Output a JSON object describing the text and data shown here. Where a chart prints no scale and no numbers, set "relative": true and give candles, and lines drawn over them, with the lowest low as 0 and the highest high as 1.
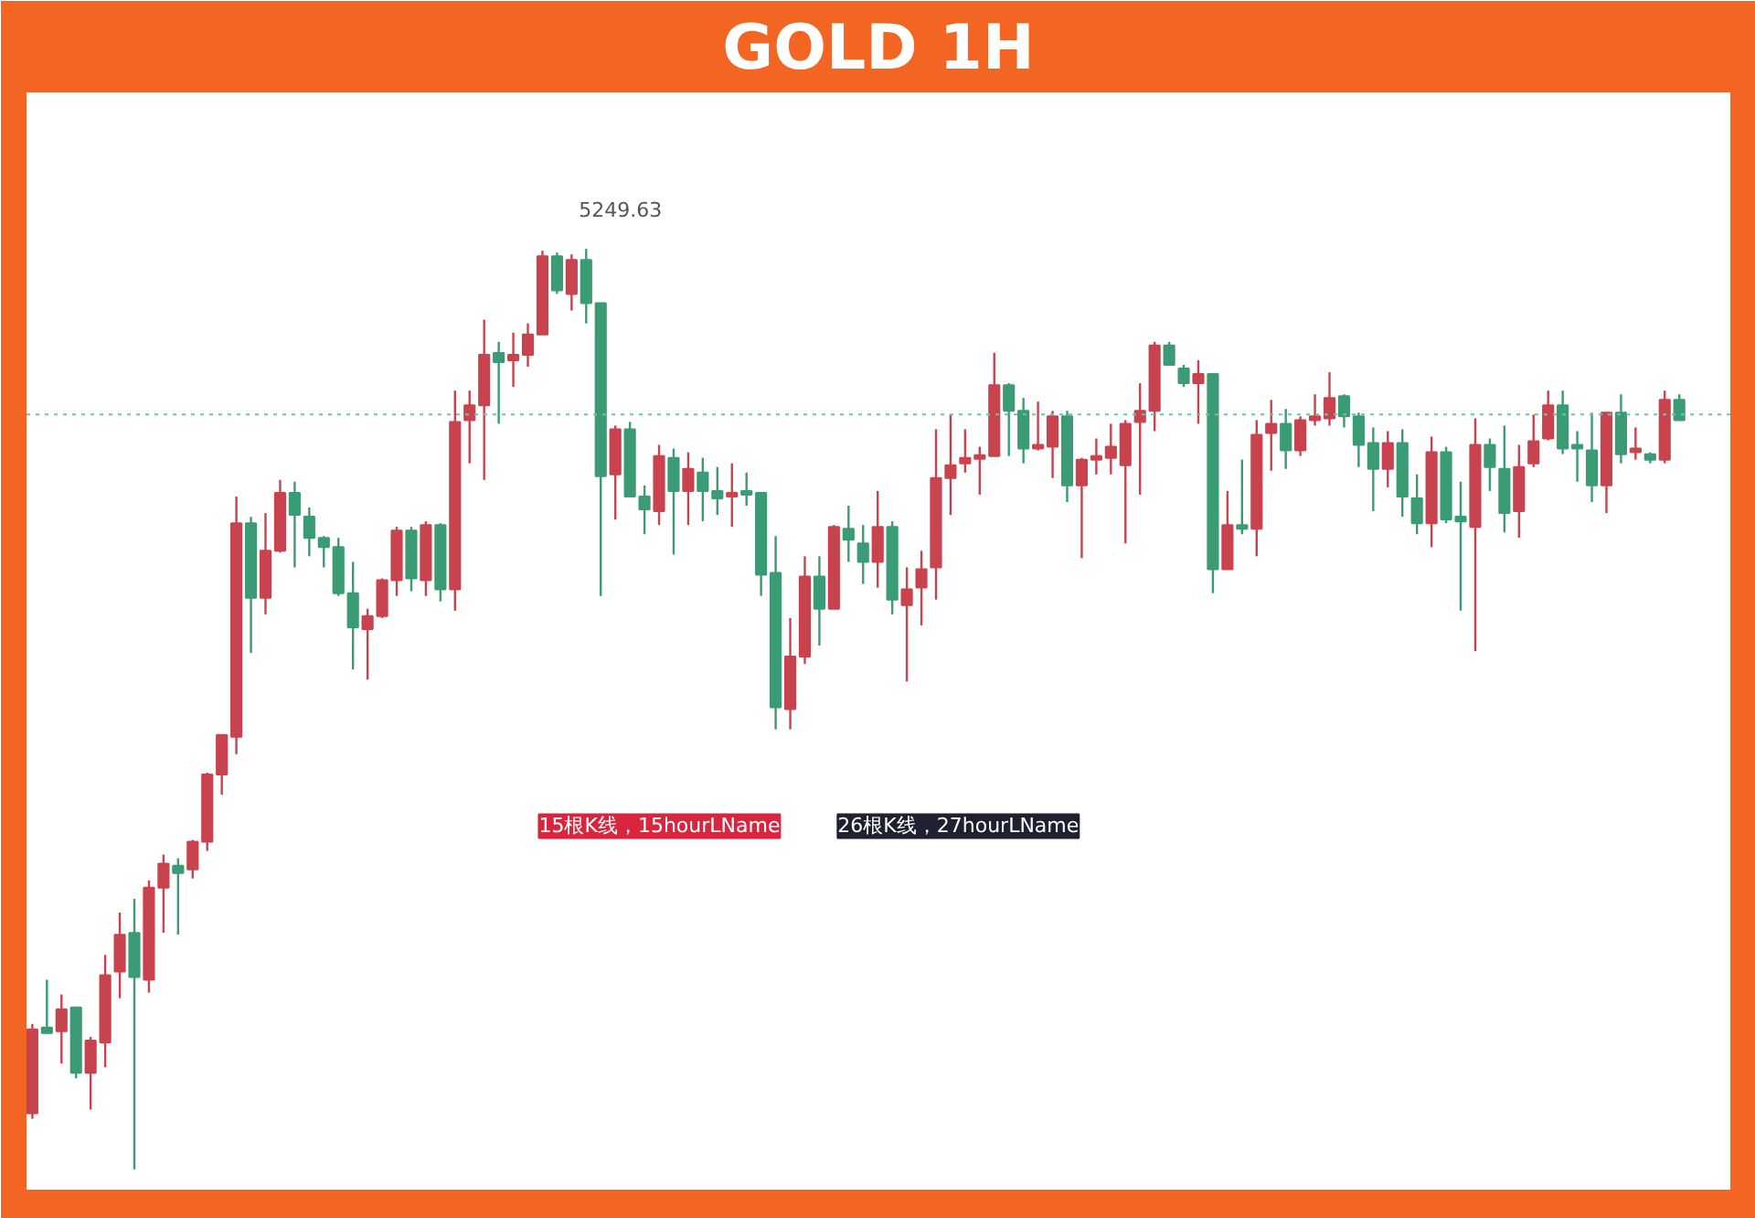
{
  "chart_data": {
    "type": "candlestick",
    "title": "GOLD 1H",
    "relative": true,
    "grid": false,
    "categories": [
      null,
      null,
      null,
      null,
      null,
      null,
      null,
      null,
      null,
      null,
      null,
      null,
      null,
      null,
      null,
      null,
      null,
      null,
      null,
      null,
      null,
      null,
      null,
      null,
      null,
      null,
      null,
      null,
      null,
      null,
      null,
      null,
      null,
      null,
      null,
      null,
      null,
      null,
      null,
      null,
      null,
      null,
      null,
      null,
      null,
      null,
      null,
      null,
      null,
      null,
      null,
      null,
      null,
      null,
      null,
      null,
      null,
      null,
      null,
      null,
      null,
      null,
      null,
      null,
      null,
      null,
      null,
      null,
      null,
      null,
      null,
      null,
      null,
      null,
      null,
      null,
      null,
      null,
      null,
      null,
      null,
      null,
      null,
      null,
      null,
      null,
      null,
      null,
      null,
      null,
      null,
      null,
      null,
      null,
      null,
      null,
      null,
      null,
      null,
      null,
      null,
      null,
      null,
      null,
      null,
      null,
      null,
      null,
      null,
      null,
      null,
      null,
      null,
      null
    ],
    "ohlc": [
      [
        0.061,
        0.158,
        0.055,
        0.152
      ],
      [
        0.154,
        0.206,
        0.148,
        0.148
      ],
      [
        0.15,
        0.19,
        0.115,
        0.174
      ],
      [
        0.176,
        0.176,
        0.099,
        0.105
      ],
      [
        0.105,
        0.144,
        0.065,
        0.14
      ],
      [
        0.138,
        0.233,
        0.111,
        0.211
      ],
      [
        0.215,
        0.279,
        0.186,
        0.255
      ],
      [
        0.257,
        0.294,
        0,
        0.209
      ],
      [
        0.206,
        0.314,
        0.192,
        0.306
      ],
      [
        0.306,
        0.342,
        0.257,
        0.332
      ],
      [
        0.33,
        0.338,
        0.255,
        0.322
      ],
      [
        0.326,
        0.358,
        0.316,
        0.356
      ],
      [
        0.356,
        0.431,
        0.346,
        0.429
      ],
      [
        0.429,
        0.472,
        0.407,
        0.472
      ],
      [
        0.47,
        0.731,
        0.451,
        0.702
      ],
      [
        0.702,
        0.709,
        0.561,
        0.621
      ],
      [
        0.621,
        0.713,
        0.603,
        0.672
      ],
      [
        0.672,
        0.749,
        0.67,
        0.735
      ],
      [
        0.735,
        0.747,
        0.654,
        0.711
      ],
      [
        0.709,
        0.719,
        0.666,
        0.686
      ],
      [
        0.686,
        0.688,
        0.654,
        0.676
      ],
      [
        0.676,
        0.686,
        0.623,
        0.626
      ],
      [
        0.626,
        0.66,
        0.543,
        0.589
      ],
      [
        0.587,
        0.609,
        0.532,
        0.601
      ],
      [
        0.601,
        0.642,
        0.599,
        0.64
      ],
      [
        0.64,
        0.698,
        0.623,
        0.694
      ],
      [
        0.694,
        0.698,
        0.628,
        0.642
      ],
      [
        0.64,
        0.704,
        0.623,
        0.7
      ],
      [
        0.7,
        0.702,
        0.617,
        0.63
      ],
      [
        0.63,
        0.846,
        0.607,
        0.812
      ],
      [
        0.814,
        0.846,
        0.767,
        0.83
      ],
      [
        0.83,
        0.923,
        0.749,
        0.885
      ],
      [
        0.887,
        0.899,
        0.81,
        0.877
      ],
      [
        0.879,
        0.909,
        0.85,
        0.885
      ],
      [
        0.885,
        0.919,
        0.872,
        0.907
      ],
      [
        0.907,
        0.998,
        0.907,
        0.992
      ],
      [
        0.992,
        0.996,
        0.951,
        0.955
      ],
      [
        0.951,
        0.994,
        0.933,
        0.988
      ],
      [
        0.988,
        1,
        0.919,
        0.941
      ],
      [
        0.941,
        0.941,
        0.623,
        0.753
      ],
      [
        0.755,
        0.808,
        0.706,
        0.804
      ],
      [
        0.804,
        0.812,
        0.731,
        0.731
      ],
      [
        0.731,
        0.743,
        0.69,
        0.717
      ],
      [
        0.715,
        0.787,
        0.7,
        0.775
      ],
      [
        0.773,
        0.783,
        0.668,
        0.737
      ],
      [
        0.737,
        0.779,
        0.7,
        0.761
      ],
      [
        0.757,
        0.773,
        0.704,
        0.737
      ],
      [
        0.737,
        0.763,
        0.711,
        0.729
      ],
      [
        0.731,
        0.767,
        0.698,
        0.735
      ],
      [
        0.735,
        0.757,
        0.721,
        0.733
      ],
      [
        0.735,
        0.735,
        0.623,
        0.646
      ],
      [
        0.648,
        0.688,
        0.478,
        0.502
      ],
      [
        0.5,
        0.599,
        0.478,
        0.557
      ],
      [
        0.557,
        0.666,
        0.549,
        0.644
      ],
      [
        0.644,
        0.666,
        0.569,
        0.609
      ],
      [
        0.609,
        0.7,
        0.609,
        0.698
      ],
      [
        0.696,
        0.721,
        0.66,
        0.684
      ],
      [
        0.68,
        0.7,
        0.636,
        0.66
      ],
      [
        0.66,
        0.737,
        0.632,
        0.698
      ],
      [
        0.698,
        0.704,
        0.603,
        0.619
      ],
      [
        0.613,
        0.654,
        0.53,
        0.63
      ],
      [
        0.632,
        0.672,
        0.591,
        0.652
      ],
      [
        0.654,
        0.804,
        0.619,
        0.751
      ],
      [
        0.751,
        0.82,
        0.711,
        0.765
      ],
      [
        0.767,
        0.804,
        0.757,
        0.773
      ],
      [
        0.772,
        0.785,
        0.733,
        0.774
      ],
      [
        0.775,
        0.887,
        0.775,
        0.852
      ],
      [
        0.852,
        0.854,
        0.775,
        0.824
      ],
      [
        0.824,
        0.838,
        0.767,
        0.783
      ],
      [
        0.783,
        0.834,
        0.781,
        0.785
      ],
      [
        0.785,
        0.824,
        0.751,
        0.818
      ],
      [
        0.818,
        0.824,
        0.725,
        0.743
      ],
      [
        0.743,
        0.773,
        0.664,
        0.771
      ],
      [
        0.771,
        0.794,
        0.755,
        0.775
      ],
      [
        0.773,
        0.81,
        0.755,
        0.785
      ],
      [
        0.765,
        0.814,
        0.68,
        0.81
      ],
      [
        0.812,
        0.854,
        0.733,
        0.824
      ],
      [
        0.824,
        0.899,
        0.802,
        0.895
      ],
      [
        0.895,
        0.899,
        0.874,
        0.874
      ],
      [
        0.87,
        0.874,
        0.85,
        0.854
      ],
      [
        0.854,
        0.879,
        0.81,
        0.864
      ],
      [
        0.864,
        0.864,
        0.626,
        0.652
      ],
      [
        0.652,
        0.737,
        0.652,
        0.7
      ],
      [
        0.7,
        0.771,
        0.69,
        0.696
      ],
      [
        0.696,
        0.814,
        0.666,
        0.798
      ],
      [
        0.8,
        0.836,
        0.759,
        0.81
      ],
      [
        0.81,
        0.826,
        0.761,
        0.781
      ],
      [
        0.781,
        0.818,
        0.775,
        0.814
      ],
      [
        0.814,
        0.842,
        0.808,
        0.816
      ],
      [
        0.816,
        0.866,
        0.808,
        0.838
      ],
      [
        0.84,
        0.842,
        0.806,
        0.818
      ],
      [
        0.818,
        0.822,
        0.763,
        0.787
      ],
      [
        0.789,
        0.806,
        0.715,
        0.761
      ],
      [
        0.761,
        0.802,
        0.741,
        0.789
      ],
      [
        0.789,
        0.804,
        0.709,
        0.731
      ],
      [
        0.729,
        0.755,
        0.69,
        0.702
      ],
      [
        0.702,
        0.796,
        0.676,
        0.779
      ],
      [
        0.779,
        0.785,
        0.702,
        0.706
      ],
      [
        0.709,
        0.747,
        0.607,
        0.704
      ],
      [
        0.698,
        0.816,
        0.563,
        0.787
      ],
      [
        0.787,
        0.794,
        0.737,
        0.763
      ],
      [
        0.761,
        0.808,
        0.692,
        0.713
      ],
      [
        0.715,
        0.787,
        0.686,
        0.763
      ],
      [
        0.767,
        0.82,
        0.763,
        0.791
      ],
      [
        0.794,
        0.846,
        0.792,
        0.83
      ],
      [
        0.83,
        0.846,
        0.777,
        0.783
      ],
      [
        0.785,
        0.802,
        0.747,
        0.783
      ],
      [
        0.781,
        0.822,
        0.725,
        0.743
      ],
      [
        0.743,
        0.822,
        0.713,
        0.822
      ],
      [
        0.822,
        0.842,
        0.767,
        0.777
      ],
      [
        0.779,
        0.806,
        0.771,
        0.781
      ],
      [
        0.777,
        0.779,
        0.767,
        0.771
      ],
      [
        0.771,
        0.846,
        0.767,
        0.836
      ],
      [
        0.836,
        0.842,
        0.814,
        0.814
      ]
    ],
    "colors": [
      "#c9434e",
      "#3b9b74",
      "#c9434e",
      "#3b9b74",
      "#c9434e",
      "#c9434e",
      "#c9434e",
      "#3b9b74",
      "#c9434e",
      "#c9434e",
      "#3b9b74",
      "#c9434e",
      "#c9434e",
      "#c9434e",
      "#c9434e",
      "#3b9b74",
      "#c9434e",
      "#c9434e",
      "#3b9b74",
      "#3b9b74",
      "#3b9b74",
      "#3b9b74",
      "#3b9b74",
      "#c9434e",
      "#c9434e",
      "#c9434e",
      "#3b9b74",
      "#c9434e",
      "#3b9b74",
      "#c9434e",
      "#c9434e",
      "#c9434e",
      "#3b9b74",
      "#c9434e",
      "#c9434e",
      "#c9434e",
      "#3b9b74",
      "#c9434e",
      "#3b9b74",
      "#3b9b74",
      "#c9434e",
      "#3b9b74",
      "#3b9b74",
      "#c9434e",
      "#3b9b74",
      "#c9434e",
      "#3b9b74",
      "#3b9b74",
      "#c9434e",
      "#3b9b74",
      "#3b9b74",
      "#3b9b74",
      "#c9434e",
      "#c9434e",
      "#3b9b74",
      "#c9434e",
      "#3b9b74",
      "#3b9b74",
      "#c9434e",
      "#3b9b74",
      "#c9434e",
      "#c9434e",
      "#c9434e",
      "#c9434e",
      "#c9434e",
      "#c9434e",
      "#c9434e",
      "#3b9b74",
      "#3b9b74",
      "#c9434e",
      "#c9434e",
      "#3b9b74",
      "#c9434e",
      "#c9434e",
      "#c9434e",
      "#c9434e",
      "#c9434e",
      "#c9434e",
      "#3b9b74",
      "#3b9b74",
      "#c9434e",
      "#3b9b74",
      "#c9434e",
      "#3b9b74",
      "#c9434e",
      "#c9434e",
      "#3b9b74",
      "#c9434e",
      "#c9434e",
      "#c9434e",
      "#3b9b74",
      "#3b9b74",
      "#3b9b74",
      "#c9434e",
      "#3b9b74",
      "#3b9b74",
      "#c9434e",
      "#3b9b74",
      "#3b9b74",
      "#c9434e",
      "#3b9b74",
      "#3b9b74",
      "#c9434e",
      "#c9434e",
      "#c9434e",
      "#3b9b74",
      "#3b9b74",
      "#3b9b74",
      "#c9434e",
      "#3b9b74",
      "#c9434e",
      "#3b9b74",
      "#c9434e",
      "#3b9b74"
    ],
    "ref_lines": [
      {
        "axis": "y",
        "value": 0.82,
        "color": "#6cc3ad",
        "line_style": "dotted"
      }
    ],
    "annotations": [
      "5249.63",
      "15根K线，15hourLName",
      "26根K线，27hourLName"
    ]
  }
}
